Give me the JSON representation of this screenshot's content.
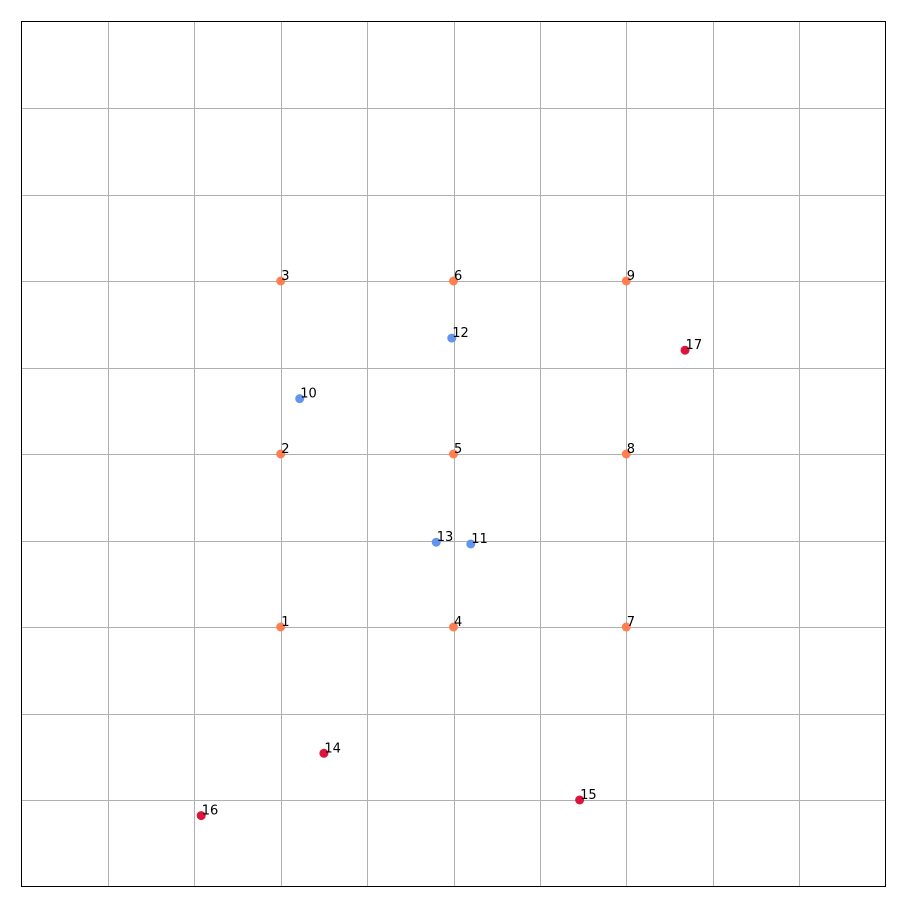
{
  "chart_data": {
    "type": "scatter",
    "title": "",
    "xlabel": "",
    "ylabel": "",
    "xlim": [
      -1.5,
      3.5
    ],
    "ylim": [
      -1.5,
      3.5
    ],
    "grid": true,
    "grid_step": 0.5,
    "show_tick_labels": false,
    "colors": {
      "orange": "#ff7f50",
      "blue": "#6495ed",
      "red": "#dc143c"
    },
    "points": [
      {
        "label": "1",
        "x": 0.0,
        "y": 0.0,
        "color": "orange"
      },
      {
        "label": "2",
        "x": 0.0,
        "y": 1.0,
        "color": "orange"
      },
      {
        "label": "3",
        "x": 0.0,
        "y": 2.0,
        "color": "orange"
      },
      {
        "label": "4",
        "x": 1.0,
        "y": 0.0,
        "color": "orange"
      },
      {
        "label": "5",
        "x": 1.0,
        "y": 1.0,
        "color": "orange"
      },
      {
        "label": "6",
        "x": 1.0,
        "y": 2.0,
        "color": "orange"
      },
      {
        "label": "7",
        "x": 2.0,
        "y": 0.0,
        "color": "orange"
      },
      {
        "label": "8",
        "x": 2.0,
        "y": 1.0,
        "color": "orange"
      },
      {
        "label": "9",
        "x": 2.0,
        "y": 2.0,
        "color": "orange"
      },
      {
        "label": "10",
        "x": 0.11,
        "y": 1.32,
        "color": "blue"
      },
      {
        "label": "11",
        "x": 1.1,
        "y": 0.48,
        "color": "blue"
      },
      {
        "label": "12",
        "x": 0.99,
        "y": 1.67,
        "color": "blue"
      },
      {
        "label": "13",
        "x": 0.9,
        "y": 0.49,
        "color": "blue"
      },
      {
        "label": "14",
        "x": 0.25,
        "y": -0.73,
        "color": "red"
      },
      {
        "label": "15",
        "x": 1.73,
        "y": -1.0,
        "color": "red"
      },
      {
        "label": "16",
        "x": -0.46,
        "y": -1.09,
        "color": "red"
      },
      {
        "label": "17",
        "x": 2.34,
        "y": 1.6,
        "color": "red"
      }
    ]
  }
}
